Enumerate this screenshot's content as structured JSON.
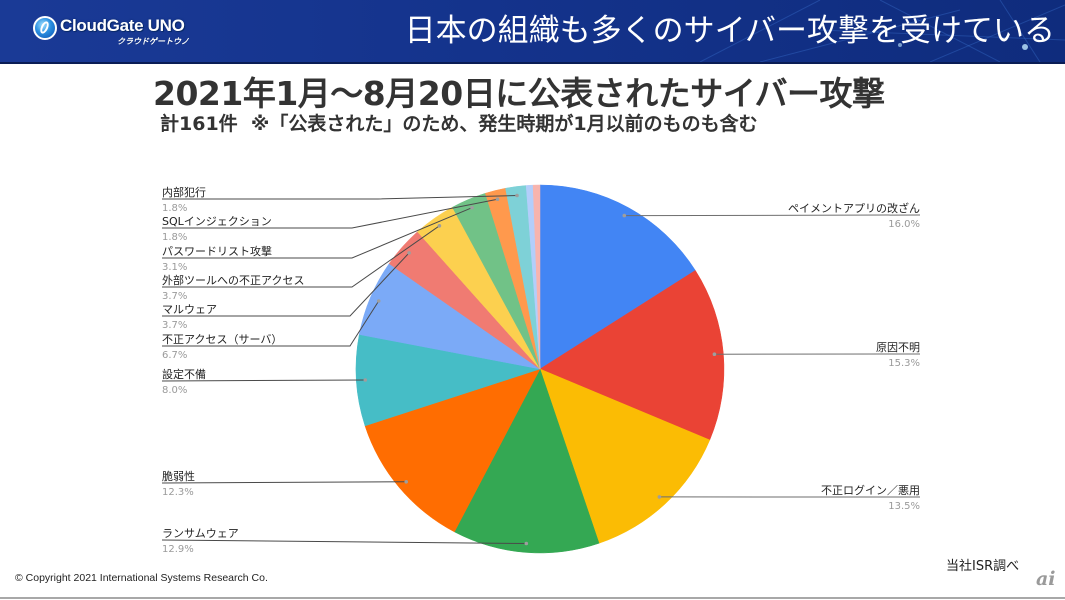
{
  "header": {
    "title": "日本の組織も多くのサイバー攻撃を受けている",
    "logo": {
      "name": "CloudGate UNO",
      "kana": "クラウドゲートウノ"
    },
    "background_color": "#14338c"
  },
  "chart_data": {
    "type": "pie",
    "title": "2021年1月～8月20日に公表されたサイバー攻撃",
    "subtitle": "計161件  ※「公表された」のため、発生時期が1月以前のものも含む",
    "start_angle": "12 o'clock",
    "direction": "clockwise",
    "unit": "%",
    "slices": [
      {
        "label": "ペイメントアプリの改ざん",
        "value": 16.0,
        "value_label": "16.0%",
        "color": "#4285f4"
      },
      {
        "label": "原因不明",
        "value": 15.3,
        "value_label": "15.3%",
        "color": "#ea4335"
      },
      {
        "label": "不正ログイン／悪用",
        "value": 13.5,
        "value_label": "13.5%",
        "color": "#fbbc04"
      },
      {
        "label": "ランサムウェア",
        "value": 12.9,
        "value_label": "12.9%",
        "color": "#34a853"
      },
      {
        "label": "脆弱性",
        "value": 12.3,
        "value_label": "12.3%",
        "color": "#ff6d01"
      },
      {
        "label": "設定不備",
        "value": 8.0,
        "value_label": "8.0%",
        "color": "#46bdc6"
      },
      {
        "label": "不正アクセス（サーバ）",
        "value": 6.7,
        "value_label": "6.7%",
        "color": "#7baaf7"
      },
      {
        "label": "マルウェア",
        "value": 3.7,
        "value_label": "3.7%",
        "color": "#f07b72"
      },
      {
        "label": "外部ツールへの不正アクセス",
        "value": 3.7,
        "value_label": "3.7%",
        "color": "#fcd04f"
      },
      {
        "label": "パスワードリスト攻撃",
        "value": 3.1,
        "value_label": "3.1%",
        "color": "#71c287"
      },
      {
        "label": "SQLインジェクション",
        "value": 1.8,
        "value_label": "1.8%",
        "color": "#ff994d"
      },
      {
        "label": "内部犯行",
        "value": 1.8,
        "value_label": "1.8%",
        "color": "#7ed1d7"
      },
      {
        "value": 0.6,
        "color": "#b3cefb"
      },
      {
        "value": 0.6,
        "color": "#f7b4ae"
      }
    ]
  },
  "source": "当社ISR調べ",
  "copyright": "© Copyright 2021 International Systems Research Co.",
  "watermark": "ai"
}
